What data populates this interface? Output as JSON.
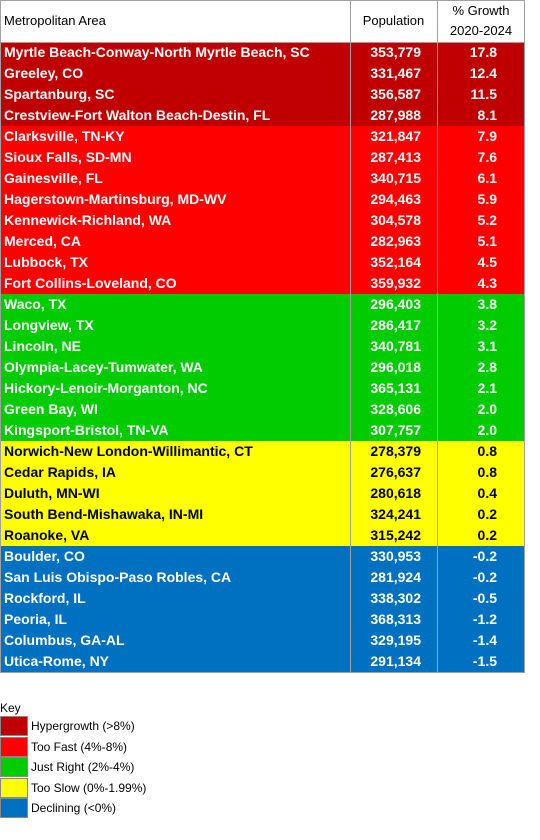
{
  "table": {
    "header": [
      "Metropolitan Area",
      "Population",
      [
        "% Growth",
        "2020-2024"
      ]
    ],
    "groups": [
      {
        "color": "#c00000",
        "text_color": "#ffffff",
        "rows": [
          [
            "Myrtle Beach-Conway-North Myrtle Beach, SC",
            "353,779",
            "17.8"
          ],
          [
            "Greeley, CO",
            "331,467",
            "12.4"
          ],
          [
            "Spartanburg, SC",
            "356,587",
            "11.5"
          ],
          [
            "Crestview-Fort Walton Beach-Destin, FL",
            "287,988",
            "8.1"
          ]
        ]
      },
      {
        "color": "#ff0000",
        "text_color": "#ffffff",
        "rows": [
          [
            "Clarksville, TN-KY",
            "321,847",
            "7.9"
          ],
          [
            "Sioux Falls, SD-MN",
            "287,413",
            "7.6"
          ],
          [
            "Gainesville, FL",
            "340,715",
            "6.1"
          ],
          [
            "Hagerstown-Martinsburg, MD-WV",
            "294,463",
            "5.9"
          ],
          [
            "Kennewick-Richland, WA",
            "304,578",
            "5.2"
          ],
          [
            "Merced, CA",
            "282,963",
            "5.1"
          ],
          [
            "Lubbock, TX",
            "352,164",
            "4.5"
          ],
          [
            "Fort Collins-Loveland, CO",
            "359,932",
            "4.3"
          ]
        ]
      },
      {
        "color": "#00cc00",
        "text_color": "#ffffff",
        "rows": [
          [
            "Waco, TX",
            "296,403",
            "3.8"
          ],
          [
            "Longview, TX",
            "286,417",
            "3.2"
          ],
          [
            "Lincoln, NE",
            "340,781",
            "3.1"
          ],
          [
            "Olympia-Lacey-Tumwater, WA",
            "296,018",
            "2.8"
          ],
          [
            "Hickory-Lenoir-Morganton, NC",
            "365,131",
            "2.1"
          ],
          [
            "Green Bay, WI",
            "328,606",
            "2.0"
          ],
          [
            "Kingsport-Bristol, TN-VA",
            "307,757",
            "2.0"
          ]
        ]
      },
      {
        "color": "#ffff00",
        "text_color": "#000000",
        "rows": [
          [
            "Norwich-New London-Willimantic, CT",
            "278,379",
            "0.8"
          ],
          [
            "Cedar Rapids, IA",
            "276,637",
            "0.8"
          ],
          [
            "Duluth, MN-WI",
            "280,618",
            "0.4"
          ],
          [
            "South Bend-Mishawaka, IN-MI",
            "324,241",
            "0.2"
          ],
          [
            "Roanoke, VA",
            "315,242",
            "0.2"
          ]
        ]
      },
      {
        "color": "#0070c0",
        "text_color": "#ffffff",
        "rows": [
          [
            "Boulder, CO",
            "330,953",
            "-0.2"
          ],
          [
            "San Luis Obispo-Paso Robles, CA",
            "281,924",
            "-0.2"
          ],
          [
            "Rockford, IL",
            "338,302",
            "-0.5"
          ],
          [
            "Peoria, IL",
            "368,313",
            "-1.2"
          ],
          [
            "Columbus, GA-AL",
            "329,195",
            "-1.4"
          ],
          [
            "Utica-Rome, NY",
            "291,134",
            "-1.5"
          ]
        ]
      }
    ]
  },
  "key": {
    "title": "Key",
    "items": [
      {
        "label": "Hypergrowth (>8%)",
        "color": "#c00000"
      },
      {
        "label": "Too Fast (4%-8%)",
        "color": "#ff0000"
      },
      {
        "label": "Just Right (2%-4%)",
        "color": "#00cc00"
      },
      {
        "label": "Too Slow (0%-1.99%)",
        "color": "#ffff00"
      },
      {
        "label": "Declining (<0%)",
        "color": "#0070c0"
      }
    ]
  }
}
